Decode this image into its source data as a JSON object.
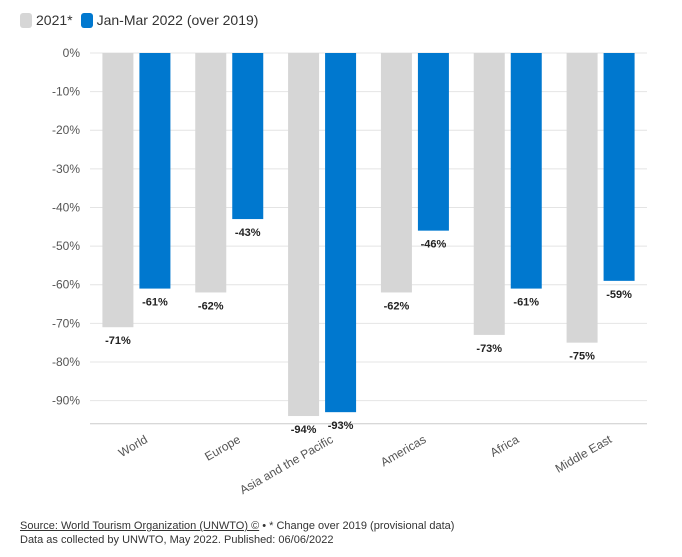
{
  "colors": {
    "series_2021": "#d6d6d6",
    "series_2022": "#0078cf",
    "grid": "#e4e4e4",
    "axis": "#cccccc"
  },
  "chart_data": {
    "type": "bar",
    "categories": [
      "World",
      "Europe",
      "Asia and the Pacific",
      "Americas",
      "Africa",
      "Middle East"
    ],
    "series": [
      {
        "name": "2021*",
        "values": [
          -71,
          -62,
          -94,
          -62,
          -73,
          -75
        ],
        "labels": [
          "-71%",
          "-62%",
          "-94%",
          "-62%",
          "-73%",
          "-75%"
        ]
      },
      {
        "name": "Jan-Mar 2022 (over 2019)",
        "values": [
          -61,
          -43,
          -93,
          -46,
          -61,
          -59
        ],
        "labels": [
          "-61%",
          "-43%",
          "-93%",
          "-46%",
          "-61%",
          "-59%"
        ]
      }
    ],
    "y_ticks": [
      0,
      -10,
      -20,
      -30,
      -40,
      -50,
      -60,
      -70,
      -80,
      -90
    ],
    "y_tick_labels": [
      "0%",
      "-10%",
      "-20%",
      "-30%",
      "-40%",
      "-50%",
      "-60%",
      "-70%",
      "-80%",
      "-90%"
    ],
    "ylim": [
      -96,
      0
    ],
    "grid": true,
    "legend": "top-left",
    "title": "",
    "xlabel": "",
    "ylabel": ""
  },
  "footer": {
    "source_link": "Source: World Tourism Organization (UNWTO) ©",
    "note": " • * Change over 2019 (provisional data)",
    "line2": "Data as collected by UNWTO, May 2022. Published: 06/06/2022"
  }
}
